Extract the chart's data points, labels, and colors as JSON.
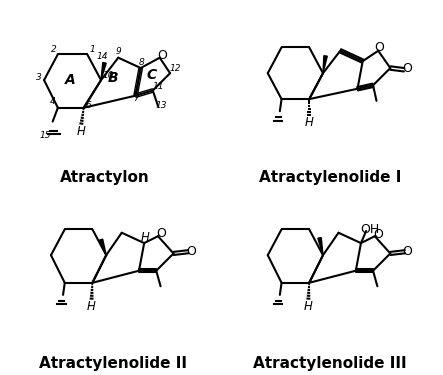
{
  "title": "",
  "bg_color": "#ffffff",
  "labels": {
    "atractylon": "Atractylon",
    "atractylenolide_I": "Atractylenolide I",
    "atractylenolide_II": "Atractylenolide II",
    "atractylenolide_III": "Atractylenolide III"
  },
  "label_fontsize": 11,
  "label_fontweight": "bold"
}
